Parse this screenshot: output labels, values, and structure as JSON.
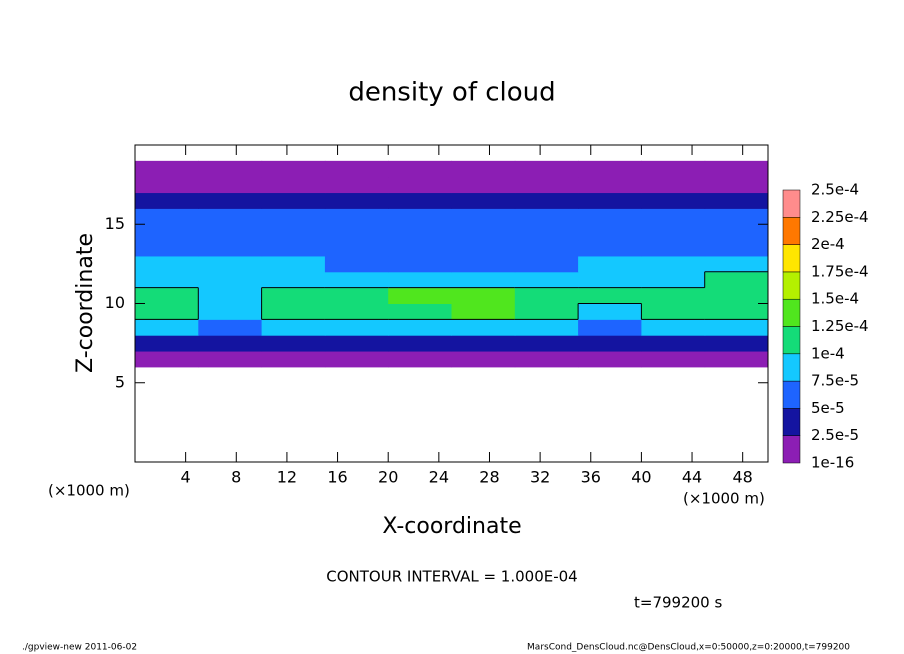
{
  "chart_data": {
    "type": "heatmap",
    "title": "density of cloud",
    "x_label": "X-coordinate",
    "y_label": "Z-coordinate",
    "x_unit_label": "(×1000 m)",
    "y_unit_label": "(×1000 m)",
    "xlim": [
      0,
      50
    ],
    "ylim": [
      0,
      20
    ],
    "xticks": [
      4,
      8,
      12,
      16,
      20,
      24,
      28,
      32,
      36,
      40,
      44,
      48
    ],
    "yticks": [
      5,
      10,
      15
    ],
    "x_edges": [
      0,
      5,
      10,
      15,
      20,
      25,
      30,
      35,
      40,
      45,
      50
    ],
    "z_edges": [
      6,
      7,
      8,
      9,
      10,
      11,
      12,
      13,
      14,
      15,
      16,
      17,
      18,
      19
    ],
    "values": [
      [
        1.5e-05,
        1.5e-05,
        1.5e-05,
        1.5e-05,
        1.5e-05,
        1.5e-05,
        1.5e-05,
        1.5e-05,
        1.5e-05,
        1.5e-05
      ],
      [
        4e-05,
        3.5e-05,
        4e-05,
        4.5e-05,
        4.5e-05,
        4.5e-05,
        4.5e-05,
        4e-05,
        4.5e-05,
        4e-05
      ],
      [
        8e-05,
        6e-05,
        9e-05,
        9.5e-05,
        9.5e-05,
        9.5e-05,
        9.5e-05,
        7e-05,
        9e-05,
        9e-05
      ],
      [
        0.000105,
        8e-05,
        0.00011,
        0.000115,
        0.00012,
        0.000125,
        0.000115,
        9e-05,
        0.000105,
        0.00011
      ],
      [
        0.000105,
        9e-05,
        0.00011,
        0.00012,
        0.00013,
        0.00013,
        0.00012,
        0.00011,
        0.000105,
        0.00011
      ],
      [
        9.5e-05,
        8.5e-05,
        8.5e-05,
        9e-05,
        9e-05,
        9e-05,
        9e-05,
        8.5e-05,
        9.5e-05,
        0.000105
      ],
      [
        8e-05,
        8e-05,
        7.5e-05,
        7e-05,
        7e-05,
        6.5e-05,
        7e-05,
        7.5e-05,
        7.5e-05,
        7.5e-05
      ],
      [
        6.5e-05,
        7e-05,
        6.5e-05,
        6e-05,
        6e-05,
        5.5e-05,
        6e-05,
        6e-05,
        6e-05,
        6e-05
      ],
      [
        6e-05,
        6e-05,
        6e-05,
        5.5e-05,
        5.5e-05,
        5.5e-05,
        5.5e-05,
        5.5e-05,
        5.5e-05,
        5.5e-05
      ],
      [
        5.5e-05,
        5.5e-05,
        5e-05,
        5e-05,
        5.5e-05,
        5e-05,
        5e-05,
        5e-05,
        5e-05,
        5.5e-05
      ],
      [
        4e-05,
        4e-05,
        4e-05,
        4e-05,
        4e-05,
        4e-05,
        4e-05,
        4e-05,
        4e-05,
        4e-05
      ],
      [
        2e-05,
        2e-05,
        2e-05,
        2e-05,
        2e-05,
        2e-05,
        2e-05,
        2e-05,
        2e-05,
        2e-05
      ],
      [
        1e-16,
        1e-16,
        1e-16,
        1e-16,
        1e-16,
        1e-16,
        1e-16,
        1e-16,
        1e-16,
        1e-16
      ]
    ],
    "levels": [
      1e-16,
      {
        "value": 2.5e-05,
        "label": "2.5e-5"
      },
      {
        "value": 5e-05,
        "label": "5e-5"
      },
      {
        "value": 7.5e-05,
        "label": "7.5e-5"
      },
      {
        "value": 0.0001,
        "label": "1e-4"
      },
      {
        "value": 0.000125,
        "label": "1.25e-4"
      },
      {
        "value": 0.00015,
        "label": "1.5e-4"
      },
      {
        "value": 0.000175,
        "label": "1.75e-4"
      },
      {
        "value": 0.0002,
        "label": "2e-4"
      },
      {
        "value": 0.000225,
        "label": "2.25e-4"
      },
      {
        "value": 0.00025,
        "label": "2.5e-4"
      }
    ],
    "colors": [
      "#8c1eb4",
      "#1414a0",
      "#1e64ff",
      "#14c8ff",
      "#14dc78",
      "#50e61e",
      "#b4f000",
      "#ffe600",
      "#ff7800",
      "#ff8c8c"
    ],
    "contour_level": 0.0001,
    "contour_text": "CONTOUR INTERVAL = 1.000E-04",
    "time_text": "t=799200 s",
    "footer_left": "./gpview-new  2011-06-02",
    "footer_right": "MarsCond_DensCloud.nc@DensCloud,x=0:50000,z=0:20000,t=799200"
  }
}
